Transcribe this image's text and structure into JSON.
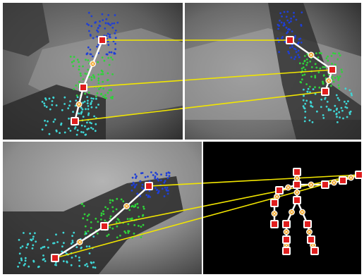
{
  "colors": {
    "background": "#ffffff",
    "black_panel": "#000000",
    "blue_points": "#1f3fd6",
    "green_points": "#2fd23a",
    "cyan_points": "#3fd6d6",
    "skeleton": "#ffffff",
    "correspondence": "#f2e600",
    "joint": "#e01e1e",
    "midpoint": "#f0a21e"
  },
  "panels": [
    {
      "name": "top-left-camera-view"
    },
    {
      "name": "top-right-camera-view"
    },
    {
      "name": "bottom-left-camera-view"
    },
    {
      "name": "bottom-right-skeleton-model"
    }
  ]
}
